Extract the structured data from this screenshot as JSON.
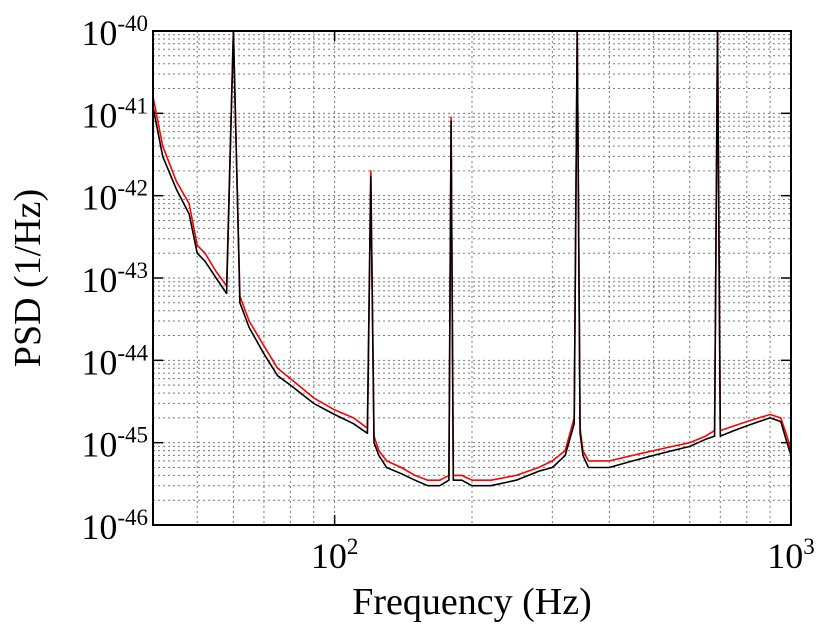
{
  "chart_data": {
    "type": "line",
    "title": "",
    "xlabel": "Frequency (Hz)",
    "ylabel": "PSD (1/Hz)",
    "xscale": "log",
    "yscale": "log",
    "xlim": [
      40,
      1000
    ],
    "ylim": [
      1e-46,
      1e-40
    ],
    "grid": true,
    "legend": "none",
    "x_ticks": [
      {
        "value": 100,
        "base": "10",
        "exp": "2"
      },
      {
        "value": 1000,
        "base": "10",
        "exp": "3"
      }
    ],
    "y_ticks": [
      {
        "value": 1e-40,
        "base": "10",
        "exp": "-40"
      },
      {
        "value": 1e-41,
        "base": "10",
        "exp": "-41"
      },
      {
        "value": 1e-42,
        "base": "10",
        "exp": "-42"
      },
      {
        "value": 1e-43,
        "base": "10",
        "exp": "-43"
      },
      {
        "value": 1e-44,
        "base": "10",
        "exp": "-44"
      },
      {
        "value": 1e-45,
        "base": "10",
        "exp": "-45"
      },
      {
        "value": 1e-46,
        "base": "10",
        "exp": "-46"
      }
    ],
    "series": [
      {
        "color": "#ff0000",
        "x": [
          40,
          42,
          45,
          48,
          50,
          52,
          55,
          58,
          60,
          62,
          65,
          70,
          75,
          80,
          90,
          100,
          110,
          118,
          120,
          122,
          125,
          130,
          140,
          150,
          160,
          170,
          178,
          180,
          182,
          190,
          200,
          220,
          250,
          280,
          300,
          320,
          335,
          340,
          345,
          350,
          360,
          400,
          450,
          500,
          550,
          600,
          650,
          680,
          690,
          700,
          750,
          800,
          850,
          900,
          950,
          980,
          1000
        ],
        "y": [
          1.6e-41,
          4e-42,
          1.5e-42,
          8e-43,
          2.5e-43,
          2e-43,
          1.2e-43,
          8e-44,
          1e-40,
          6e-44,
          3e-44,
          1.5e-44,
          8e-45,
          6e-45,
          3.5e-45,
          2.5e-45,
          2e-45,
          1.5e-45,
          2e-42,
          1.2e-45,
          8e-46,
          6e-46,
          5e-46,
          4e-46,
          3.5e-46,
          3.5e-46,
          4e-46,
          9e-42,
          4e-46,
          4e-46,
          3.5e-46,
          3.5e-46,
          4e-46,
          5e-46,
          6e-46,
          8e-46,
          2e-45,
          1e-40,
          1.5e-45,
          8e-46,
          6e-46,
          6e-46,
          7e-46,
          8e-46,
          9e-46,
          1e-45,
          1.2e-45,
          1.4e-45,
          1e-40,
          1.4e-45,
          1.6e-45,
          1.8e-45,
          2e-45,
          2.2e-45,
          2e-45,
          1.2e-45,
          8e-46
        ]
      },
      {
        "color": "#000000",
        "x": [
          40,
          42,
          45,
          48,
          50,
          52,
          55,
          58,
          60,
          62,
          65,
          70,
          75,
          80,
          90,
          100,
          110,
          118,
          120,
          122,
          125,
          130,
          140,
          150,
          160,
          170,
          178,
          180,
          182,
          190,
          200,
          220,
          250,
          280,
          300,
          320,
          335,
          340,
          345,
          350,
          360,
          400,
          450,
          500,
          550,
          600,
          650,
          680,
          690,
          700,
          750,
          800,
          850,
          900,
          950,
          980,
          1000
        ],
        "y": [
          1.2e-41,
          3e-42,
          1.2e-42,
          6e-43,
          2e-43,
          1.6e-43,
          1e-43,
          6.5e-44,
          1e-40,
          5e-44,
          2.5e-44,
          1.2e-44,
          6.5e-45,
          5e-45,
          3e-45,
          2.2e-45,
          1.7e-45,
          1.3e-45,
          1.7e-42,
          1e-45,
          7e-46,
          5e-46,
          4.2e-46,
          3.5e-46,
          3e-46,
          3e-46,
          3.5e-46,
          8e-42,
          3.5e-46,
          3.5e-46,
          3e-46,
          3e-46,
          3.5e-46,
          4.5e-46,
          5e-46,
          7e-46,
          1.7e-45,
          1e-40,
          1.3e-45,
          7e-46,
          5e-46,
          5e-46,
          6e-46,
          7e-46,
          8e-46,
          9e-46,
          1.1e-45,
          1.2e-45,
          1e-40,
          1.2e-45,
          1.4e-45,
          1.6e-45,
          1.8e-45,
          2e-45,
          1.8e-45,
          1e-45,
          7e-46
        ]
      }
    ]
  }
}
